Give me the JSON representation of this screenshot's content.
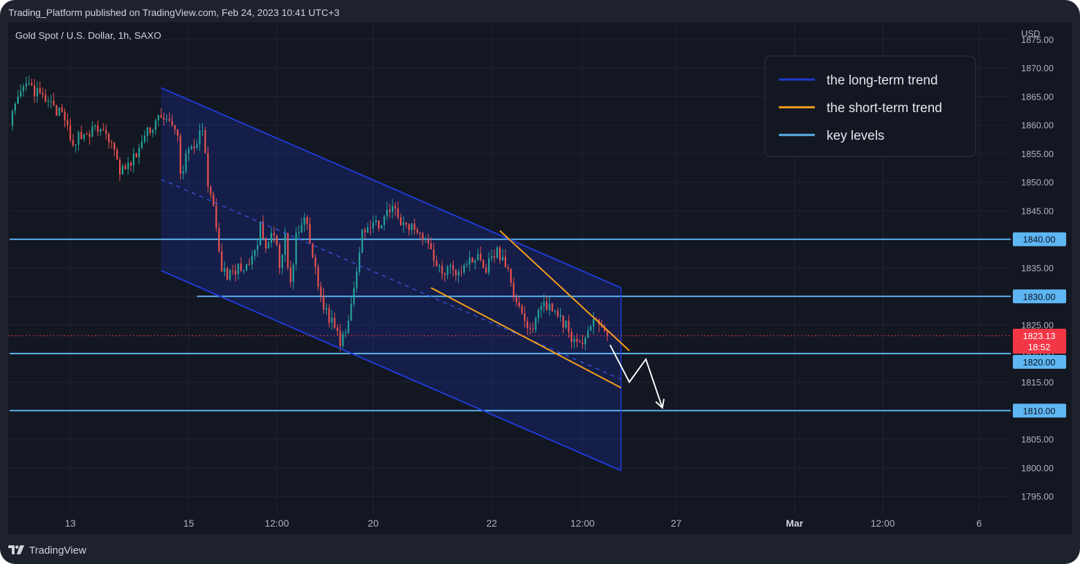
{
  "header": {
    "published": "Trading_Platform published on TradingView.com, Feb 24, 2023 10:41 UTC+3"
  },
  "footer": {
    "brand": "TradingView",
    "logo_icon": "tradingview-logo-icon"
  },
  "colors": {
    "background": "#131722",
    "frame": "#1e222d",
    "grid": "#1f2430",
    "text": "#b2b5be",
    "up_candle": "#26a69a",
    "down_candle": "#ef5350",
    "long_term_trend": "#1f3bd6",
    "short_term_trend": "#f7a21b",
    "key_levels": "#5eb6f2",
    "price_label": "#f23645",
    "level_label": "#5eb6f2"
  },
  "chart_data": {
    "type": "candlestick",
    "title": "Gold Spot / U.S. Dollar, 1h, SAXO",
    "currency": "USD",
    "ylim": [
      1792,
      1878
    ],
    "y_ticks": [
      1875,
      1870,
      1865,
      1860,
      1855,
      1850,
      1845,
      1840,
      1835,
      1830,
      1825,
      1820,
      1815,
      1810,
      1805,
      1800,
      1795
    ],
    "y_tick_labels": [
      "1875.00",
      "1870.00",
      "1865.00",
      "1860.00",
      "1855.00",
      "1850.00",
      "1845.00",
      "1840.00",
      "1835.00",
      "1830.00",
      "1825.00",
      "1820.00",
      "1815.00",
      "1810.00",
      "1805.00",
      "1800.00",
      "1795.00"
    ],
    "x_ticks": [
      {
        "label": "13",
        "bar": 22,
        "bold": false
      },
      {
        "label": "15",
        "bar": 65,
        "bold": false
      },
      {
        "label": "12:00",
        "bar": 97,
        "bold": false
      },
      {
        "label": "20",
        "bar": 132,
        "bold": false
      },
      {
        "label": "22",
        "bar": 175,
        "bold": false
      },
      {
        "label": "12:00",
        "bar": 208,
        "bold": false
      },
      {
        "label": "27",
        "bar": 242,
        "bold": false
      },
      {
        "label": "Mar",
        "bar": 285,
        "bold": true
      },
      {
        "label": "12:00",
        "bar": 317,
        "bold": false
      },
      {
        "label": "6",
        "bar": 352,
        "bold": false
      }
    ],
    "bars_visible": 364,
    "candles_close_path": [
      [
        0,
        1861
      ],
      [
        6,
        1867
      ],
      [
        11,
        1865
      ],
      [
        16,
        1863
      ],
      [
        20,
        1861
      ],
      [
        22,
        1857
      ],
      [
        25,
        1858
      ],
      [
        30,
        1859
      ],
      [
        35,
        1859
      ],
      [
        40,
        1852
      ],
      [
        44,
        1853
      ],
      [
        48,
        1857
      ],
      [
        52,
        1860
      ],
      [
        55,
        1862
      ],
      [
        58,
        1860
      ],
      [
        61,
        1858
      ],
      [
        62,
        1851
      ],
      [
        65,
        1856
      ],
      [
        68,
        1857
      ],
      [
        70,
        1859
      ],
      [
        72,
        1849
      ],
      [
        75,
        1843
      ],
      [
        77,
        1834
      ],
      [
        80,
        1834
      ],
      [
        84,
        1835
      ],
      [
        88,
        1836
      ],
      [
        91,
        1842
      ],
      [
        93,
        1838
      ],
      [
        96,
        1841
      ],
      [
        98,
        1835
      ],
      [
        100,
        1840
      ],
      [
        102,
        1832
      ],
      [
        104,
        1840
      ],
      [
        107,
        1844
      ],
      [
        110,
        1837
      ],
      [
        113,
        1830
      ],
      [
        115,
        1827
      ],
      [
        118,
        1825
      ],
      [
        120,
        1822
      ],
      [
        123,
        1826
      ],
      [
        126,
        1835
      ],
      [
        128,
        1842
      ],
      [
        132,
        1842
      ],
      [
        136,
        1844
      ],
      [
        140,
        1845
      ],
      [
        143,
        1842
      ],
      [
        147,
        1842
      ],
      [
        150,
        1841
      ],
      [
        153,
        1838
      ],
      [
        157,
        1834
      ],
      [
        160,
        1836
      ],
      [
        163,
        1834
      ],
      [
        167,
        1836
      ],
      [
        170,
        1837
      ],
      [
        173,
        1835
      ],
      [
        177,
        1838
      ],
      [
        181,
        1834
      ],
      [
        184,
        1829
      ],
      [
        187,
        1825
      ],
      [
        190,
        1825
      ],
      [
        193,
        1828
      ],
      [
        196,
        1829
      ],
      [
        199,
        1826
      ],
      [
        202,
        1825
      ],
      [
        204,
        1823
      ],
      [
        206,
        1821
      ],
      [
        208,
        1822
      ],
      [
        211,
        1825
      ],
      [
        213,
        1826
      ],
      [
        215,
        1825
      ],
      [
        217,
        1823.13
      ]
    ],
    "current_price": 1823.13,
    "current_price_label": "1823.13",
    "countdown_label": "18:52",
    "key_levels": [
      {
        "value": 1840,
        "label": "1840.00",
        "from_bar": 0
      },
      {
        "value": 1830,
        "label": "1830.00",
        "from_bar": 68
      },
      {
        "value": 1820,
        "label": "1820.00",
        "from_bar": 0
      },
      {
        "value": 1810,
        "label": "1810.00",
        "from_bar": 0
      }
    ],
    "long_term_channel": {
      "upper": [
        [
          55,
          1866.5
        ],
        [
          222,
          1831.5
        ]
      ],
      "lower": [
        [
          55,
          1834.5
        ],
        [
          222,
          1799.5
        ]
      ],
      "midline": [
        [
          55,
          1850.5
        ],
        [
          222,
          1815.5
        ]
      ]
    },
    "short_term_trend": {
      "upper": [
        [
          178,
          1841.5
        ],
        [
          225,
          1820.5
        ]
      ],
      "lower": [
        [
          153,
          1831.5
        ],
        [
          222,
          1814
        ]
      ]
    },
    "projection_arrow": [
      [
        218,
        1821.5
      ],
      [
        225,
        1815
      ],
      [
        231,
        1819
      ],
      [
        237,
        1810.5
      ]
    ],
    "legend": {
      "placement": "top-right",
      "items": [
        {
          "label": "the long-term trend",
          "color": "#1f3bd6"
        },
        {
          "label": "the short-term trend",
          "color": "#f7a21b"
        },
        {
          "label": "key levels",
          "color": "#5eb6f2"
        }
      ]
    }
  }
}
